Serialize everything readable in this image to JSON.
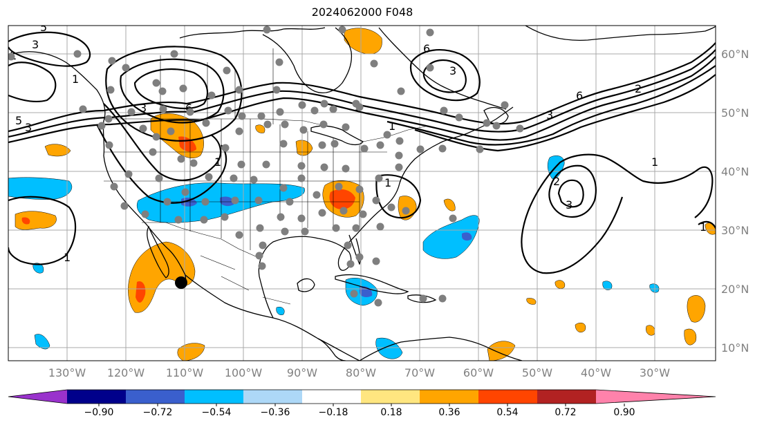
{
  "title": "2024062000 F048",
  "map": {
    "lon_labels": [
      "130°W",
      "120°W",
      "110°W",
      "100°W",
      "90°W",
      "80°W",
      "70°W",
      "60°W",
      "50°W",
      "40°W",
      "30°W"
    ],
    "lat_labels": [
      "60°N",
      "50°N",
      "40°N",
      "30°N",
      "20°N",
      "10°N"
    ],
    "contour_labels": [
      "5",
      "3",
      "1",
      "3",
      "5",
      "6",
      "1",
      "1",
      "3",
      "6",
      "3",
      "1",
      "1",
      "3",
      "6",
      "2",
      "1",
      "2",
      "3",
      "1",
      "1",
      "1"
    ],
    "observation_color": "#7f7f7f",
    "marker_color": "#000000"
  },
  "colorbar": {
    "tick_labels": [
      "−0.90",
      "−0.72",
      "−0.54",
      "−0.36",
      "−0.18",
      "0.18",
      "0.36",
      "0.54",
      "0.72",
      "0.90"
    ],
    "colors": [
      "#9932cc",
      "#00008b",
      "#3a5fcd",
      "#00bfff",
      "#add8f7",
      "#ffffff",
      "#ffe680",
      "#ffa500",
      "#ff4500",
      "#b22222",
      "#ff82ab"
    ]
  }
}
